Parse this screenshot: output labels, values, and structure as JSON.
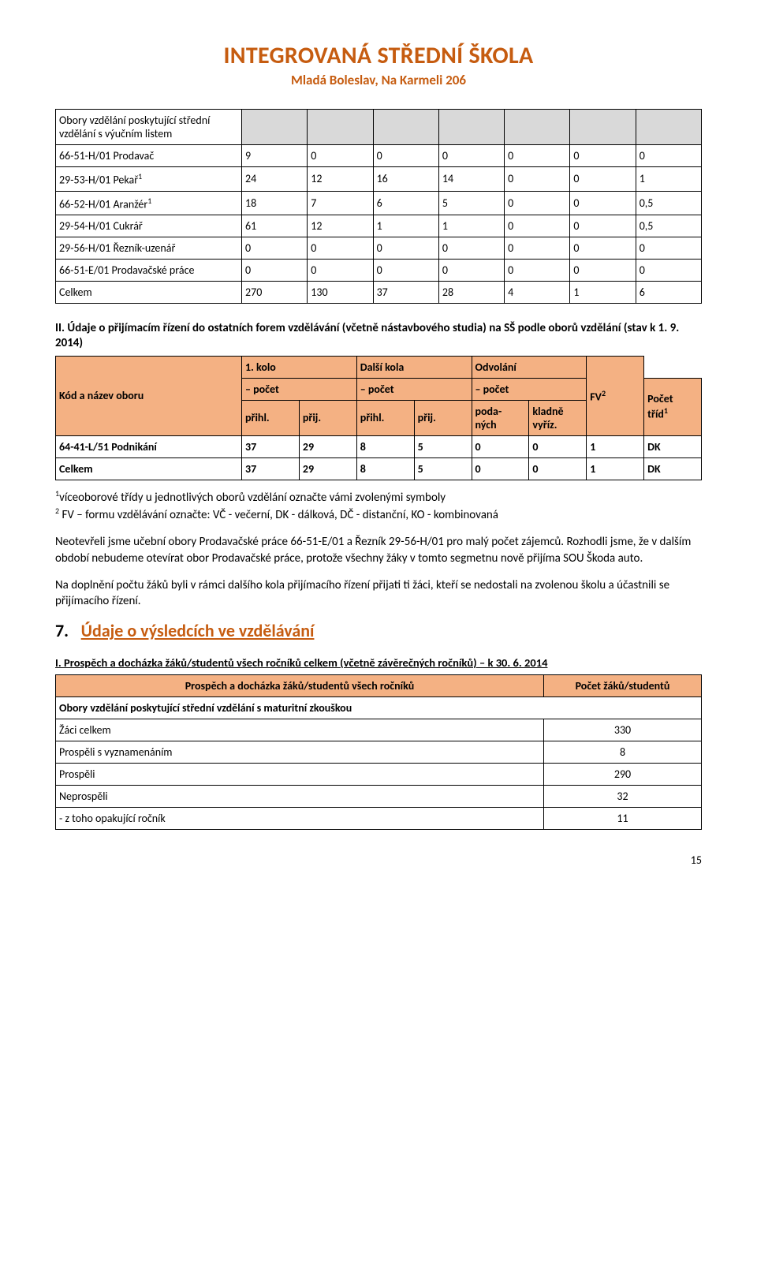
{
  "colors": {
    "accent": "#c65c10",
    "tableHeaderBg": "#f4b183",
    "graySection": "#d9d9d9",
    "border": "#000000",
    "text": "#000000",
    "background": "#ffffff"
  },
  "header": {
    "title": "INTEGROVANÁ STŘEDNÍ ŠKOLA",
    "subtitle": "Mladá Boleslav, Na Karmeli 206"
  },
  "table1": {
    "sectionRow": "Obory vzdělání poskytující střední vzdělání s výučním listem",
    "rows": [
      {
        "label": "66-51-H/01 Prodavač",
        "c": [
          "9",
          "0",
          "0",
          "0",
          "0",
          "0",
          "0"
        ]
      },
      {
        "label": "29-53-H/01 Pekař",
        "sup": "1",
        "c": [
          "24",
          "12",
          "16",
          "14",
          "0",
          "0",
          "1"
        ]
      },
      {
        "label": "66-52-H/01 Aranžér",
        "sup": "1",
        "c": [
          "18",
          "7",
          "6",
          "5",
          "0",
          "0",
          "0,5"
        ]
      },
      {
        "label": "29-54-H/01 Cukrář",
        "c": [
          "61",
          "12",
          "1",
          "1",
          "0",
          "0",
          "0,5"
        ]
      },
      {
        "label": "29-56-H/01 Řezník-uzenář",
        "c": [
          "0",
          "0",
          "0",
          "0",
          "0",
          "0",
          "0"
        ]
      },
      {
        "label": "66-51-E/01 Prodavačské práce",
        "c": [
          "0",
          "0",
          "0",
          "0",
          "0",
          "0",
          "0"
        ]
      },
      {
        "label": "Celkem",
        "c": [
          "270",
          "130",
          "37",
          "28",
          "4",
          "1",
          "6"
        ]
      }
    ]
  },
  "section2": {
    "title": "II. Údaje o přijímacím řízení do ostatních forem vzdělávání (včetně nástavbového studia) na SŠ podle oborů vzdělání (stav k 1. 9. 2014)",
    "colLabel": "Kód a název oboru",
    "hdr": {
      "c1": "1. kolo",
      "c2": "Další kola",
      "c3": "Odvolání",
      "pocet": "– počet",
      "pocetCap": "Počet",
      "prihl": "přihl.",
      "prij": "přij.",
      "podanych": "poda-\nných",
      "kladne": "kladně vyříz.",
      "trid": "tříd",
      "tridSup": "1",
      "fv": "FV",
      "fvSup": "2"
    },
    "rows": [
      {
        "label": "64-41-L/51 Podnikání",
        "c": [
          "37",
          "29",
          "8",
          "5",
          "0",
          "0",
          "1",
          "DK"
        ]
      },
      {
        "label": "Celkem",
        "c": [
          "37",
          "29",
          "8",
          "5",
          "0",
          "0",
          "1",
          "DK"
        ]
      }
    ]
  },
  "notes": {
    "foot1sup": "1",
    "foot1": "víceoborové třídy u jednotlivých oborů vzdělání označte vámi zvolenými symboly",
    "foot2sup": "2",
    "foot2": " FV – formu vzdělávání označte: VČ - večerní, DK - dálková,  DČ - distanční, KO - kombinovaná",
    "p1": "Neotevřeli jsme učební obory Prodavačské práce 66-51-E/01 a Řezník 29-56-H/01 pro malý počet zájemců. Rozhodli jsme, že v dalším období nebudeme otevírat obor Prodavačské práce, protože všechny žáky v tomto segmetnu nově přijíma SOU Škoda auto.",
    "p2": "Na doplnění počtu žáků byli v rámci dalšího kola přijímacího řízení přijati ti žáci, kteří se nedostali na zvolenou školu a účastnili se přijímacího řízení."
  },
  "section7": {
    "num": "7.",
    "heading": "Údaje o výsledcích ve vzdělávání",
    "sub": "I. Prospěch a docházka žáků/studentů všech ročníků celkem (včetně závěrečných ročníků) – k 30. 6. 2014",
    "hdr": {
      "left": "Prospěch a docházka žáků/studentů všech ročníků",
      "right": "Počet žáků/studentů"
    },
    "sectionRow": "Obory vzdělání poskytující střední vzdělání s maturitní zkouškou",
    "rows": [
      {
        "label": "Žáci celkem",
        "v": "330"
      },
      {
        "label": "Prospěli s vyznamenáním",
        "v": "8"
      },
      {
        "label": "Prospěli",
        "v": "290"
      },
      {
        "label": "Neprospěli",
        "v": "32"
      },
      {
        "label": "- z toho opakující ročník",
        "v": "11"
      }
    ]
  },
  "pageNumber": "15"
}
